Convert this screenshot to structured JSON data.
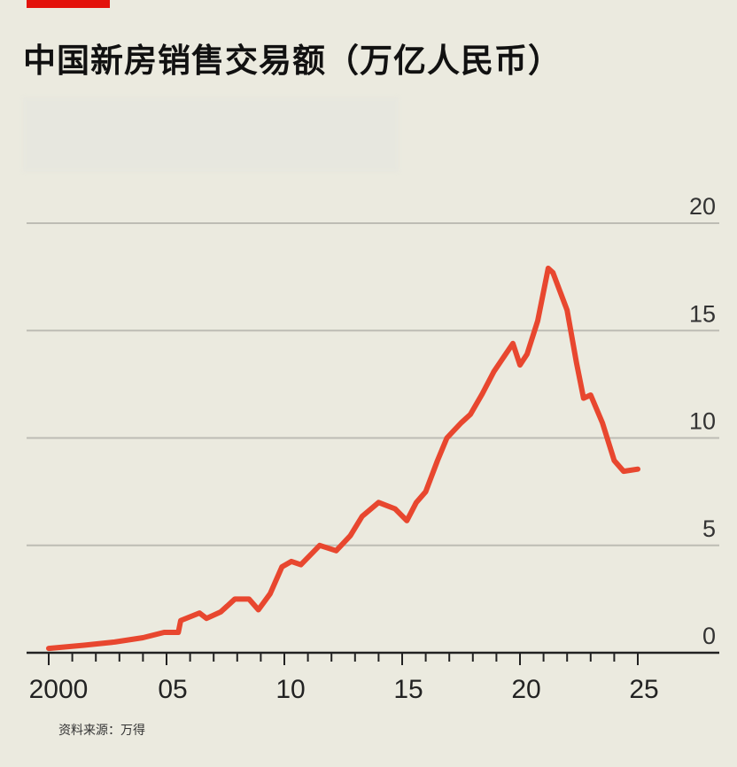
{
  "title": "中国新房销售交易额（万亿人民币）",
  "source": "资料来源：万得",
  "colors": {
    "accent": "#e3120b",
    "line": "#e8472f",
    "grid": "#bdbcb4",
    "background": "#ebeadf"
  },
  "chart_data": {
    "type": "line",
    "title": "中国新房销售交易额（万亿人民币）",
    "xlabel": "",
    "ylabel": "",
    "xlim": [
      1999,
      2028.5
    ],
    "ylim": [
      0,
      20
    ],
    "yticks": [
      0,
      5,
      10,
      15,
      20
    ],
    "ytick_labels": [
      "0",
      "5",
      "10",
      "15",
      "20"
    ],
    "xtick_labels": [
      {
        "x": 2000,
        "label": "2000"
      },
      {
        "x": 2005,
        "label": "05"
      },
      {
        "x": 2010,
        "label": "10"
      },
      {
        "x": 2015,
        "label": "15"
      },
      {
        "x": 2020,
        "label": "20"
      },
      {
        "x": 2025,
        "label": "25"
      }
    ],
    "grid": true,
    "series": [
      {
        "name": "新房销售交易额",
        "x": [
          2000.0,
          2001.5,
          2002.8,
          2004.0,
          2004.9,
          2005.5,
          2005.6,
          2006.4,
          2006.7,
          2007.3,
          2007.9,
          2008.5,
          2008.9,
          2009.4,
          2009.9,
          2010.3,
          2010.7,
          2011.1,
          2011.5,
          2012.2,
          2012.8,
          2013.3,
          2014.0,
          2014.7,
          2015.2,
          2015.6,
          2016.0,
          2016.5,
          2016.9,
          2017.5,
          2017.9,
          2018.4,
          2018.9,
          2019.7,
          2020.0,
          2020.3,
          2020.75,
          2021.2,
          2021.4,
          2022.0,
          2022.4,
          2022.7,
          2023.0,
          2023.5,
          2024.0,
          2024.4,
          2025.0
        ],
        "y": [
          0.2,
          0.35,
          0.5,
          0.7,
          0.95,
          0.95,
          1.5,
          1.85,
          1.6,
          1.9,
          2.5,
          2.5,
          2.0,
          2.75,
          4.0,
          4.25,
          4.1,
          4.55,
          5.0,
          4.75,
          5.45,
          6.35,
          7.0,
          6.7,
          6.15,
          7.0,
          7.5,
          8.95,
          10.0,
          10.7,
          11.1,
          12.05,
          13.1,
          14.4,
          13.4,
          13.9,
          15.45,
          17.9,
          17.7,
          15.95,
          13.5,
          11.85,
          12.0,
          10.7,
          8.95,
          8.45,
          8.55
        ]
      }
    ]
  }
}
